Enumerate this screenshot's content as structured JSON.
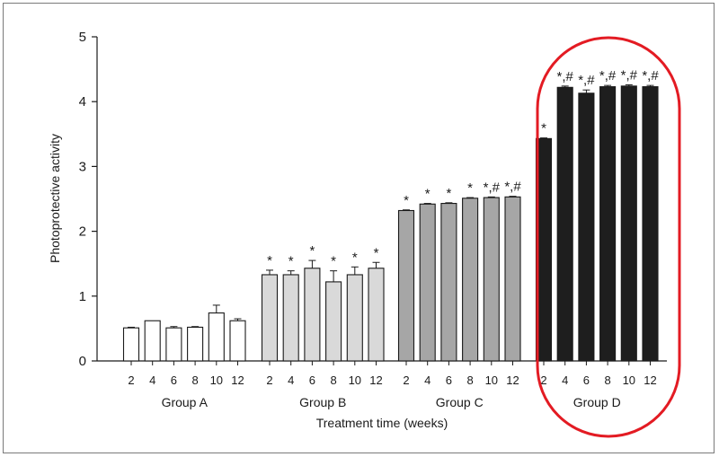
{
  "chart_data": {
    "type": "bar",
    "title": "",
    "xlabel": "Treatment time (weeks)",
    "ylabel": "Photoprotective activity",
    "ylim": [
      0,
      5
    ],
    "yticks": [
      "0",
      "1",
      "2",
      "3",
      "4",
      "5"
    ],
    "grid": false,
    "groups": [
      {
        "name": "Group A",
        "fill": "#ffffff",
        "categories": [
          "2",
          "4",
          "6",
          "8",
          "10",
          "12"
        ],
        "values": [
          0.51,
          0.62,
          0.51,
          0.52,
          0.74,
          0.62
        ],
        "errors": [
          0.01,
          0.0,
          0.02,
          0.01,
          0.12,
          0.03
        ],
        "marks": [
          "",
          "",
          "",
          "",
          "",
          ""
        ]
      },
      {
        "name": "Group B",
        "fill": "#d9d9d9",
        "categories": [
          "2",
          "4",
          "6",
          "8",
          "10",
          "12"
        ],
        "values": [
          1.33,
          1.33,
          1.43,
          1.22,
          1.33,
          1.43
        ],
        "errors": [
          0.07,
          0.06,
          0.12,
          0.17,
          0.12,
          0.09
        ],
        "marks": [
          "*",
          "*",
          "*",
          "*",
          "*",
          "*"
        ]
      },
      {
        "name": "Group C",
        "fill": "#a6a6a6",
        "categories": [
          "2",
          "4",
          "6",
          "8",
          "10",
          "12"
        ],
        "values": [
          2.32,
          2.42,
          2.43,
          2.51,
          2.52,
          2.53
        ],
        "errors": [
          0.01,
          0.01,
          0.01,
          0.01,
          0.01,
          0.01
        ],
        "marks": [
          "*",
          "*",
          "*",
          "*",
          "*,#",
          "*,#"
        ]
      },
      {
        "name": "Group D",
        "fill": "#1e1e1e",
        "categories": [
          "2",
          "4",
          "6",
          "8",
          "10",
          "12"
        ],
        "values": [
          3.43,
          4.22,
          4.13,
          4.23,
          4.24,
          4.23
        ],
        "errors": [
          0.01,
          0.02,
          0.05,
          0.02,
          0.02,
          0.02
        ],
        "marks": [
          "*",
          "*,#",
          "*,#",
          "*,#",
          "*,#",
          "*,#"
        ]
      }
    ],
    "highlight": {
      "group": "Group D",
      "color": "#e31b23"
    }
  }
}
